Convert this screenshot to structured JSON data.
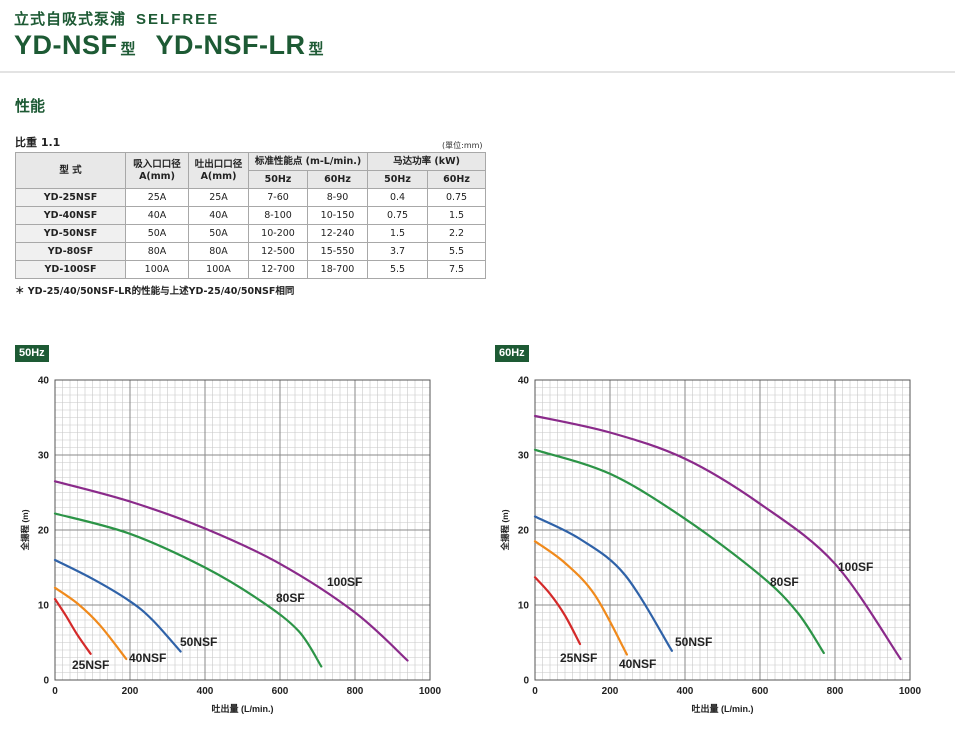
{
  "header": {
    "subtitle_cn": "立式自吸式泵浦",
    "subtitle_en": "SELFREE",
    "model_a": "YD-NSF",
    "model_b": "YD-NSF-LR",
    "type_char": "型"
  },
  "section_title": "性能",
  "specific_gravity": "比重 1.1",
  "unit_note": "(單位:mm)",
  "table": {
    "headers": {
      "type": "型 式",
      "suction_l1": "吸入口口径",
      "suction_l2": "A(mm)",
      "discharge_l1": "吐出口口径",
      "discharge_l2": "A(mm)",
      "performance": "标准性能点 (m-L/min.)",
      "motor": "马达功率 (kW)",
      "hz50": "50Hz",
      "hz60": "60Hz"
    },
    "rows": [
      {
        "model": "YD-25NSF",
        "suction": "25A",
        "discharge": "25A",
        "perf50": "7-60",
        "perf60": "8-90",
        "kw50": "0.4",
        "kw60": "0.75"
      },
      {
        "model": "YD-40NSF",
        "suction": "40A",
        "discharge": "40A",
        "perf50": "8-100",
        "perf60": "10-150",
        "kw50": "0.75",
        "kw60": "1.5"
      },
      {
        "model": "YD-50NSF",
        "suction": "50A",
        "discharge": "50A",
        "perf50": "10-200",
        "perf60": "12-240",
        "kw50": "1.5",
        "kw60": "2.2"
      },
      {
        "model": "YD-80SF",
        "suction": "80A",
        "discharge": "80A",
        "perf50": "12-500",
        "perf60": "15-550",
        "kw50": "3.7",
        "kw60": "5.5"
      },
      {
        "model": "YD-100SF",
        "suction": "100A",
        "discharge": "100A",
        "perf50": "12-700",
        "perf60": "18-700",
        "kw50": "5.5",
        "kw60": "7.5"
      }
    ]
  },
  "footnote": "＊ YD-25/40/50NSF-LR的性能与上述YD-25/40/50NSF相同",
  "colors": {
    "brand_green": "#1d5a34",
    "25NSF": "#d42a2a",
    "40NSF": "#f08a1c",
    "50NSF": "#2f62a8",
    "80SF": "#2c9447",
    "100SF": "#8a2a8a"
  },
  "chart_data": [
    {
      "type": "line",
      "title": "50Hz",
      "xlabel": "吐出量 (L/min.)",
      "ylabel": "全揚程 (m)",
      "xlim": [
        0,
        1000
      ],
      "ylim": [
        0,
        40
      ],
      "xticks": [
        0,
        200,
        400,
        600,
        800,
        1000
      ],
      "yticks": [
        0,
        10,
        20,
        30,
        40
      ],
      "grid": true,
      "series": [
        {
          "name": "25NSF",
          "x": [
            0,
            30,
            60,
            95
          ],
          "y": [
            10.8,
            8.5,
            6.0,
            3.5
          ]
        },
        {
          "name": "40NSF",
          "x": [
            0,
            60,
            120,
            190
          ],
          "y": [
            12.3,
            10.2,
            7.3,
            2.8
          ]
        },
        {
          "name": "50NSF",
          "x": [
            0,
            100,
            200,
            260,
            335
          ],
          "y": [
            16.0,
            13.5,
            10.5,
            8.0,
            3.8
          ]
        },
        {
          "name": "80SF",
          "x": [
            0,
            200,
            400,
            550,
            650,
            710
          ],
          "y": [
            22.2,
            19.5,
            15.0,
            10.5,
            6.5,
            1.8
          ]
        },
        {
          "name": "100SF",
          "x": [
            0,
            200,
            400,
            600,
            800,
            940
          ],
          "y": [
            26.5,
            23.8,
            20.2,
            15.5,
            9.0,
            2.6
          ]
        }
      ]
    },
    {
      "type": "line",
      "title": "60Hz",
      "xlabel": "吐出量 (L/min.)",
      "ylabel": "全揚程 (m)",
      "xlim": [
        0,
        1000
      ],
      "ylim": [
        0,
        40
      ],
      "xticks": [
        0,
        200,
        400,
        600,
        800,
        1000
      ],
      "yticks": [
        0,
        10,
        20,
        30,
        40
      ],
      "grid": true,
      "series": [
        {
          "name": "25NSF",
          "x": [
            0,
            40,
            80,
            120
          ],
          "y": [
            13.7,
            11.5,
            8.6,
            4.8
          ]
        },
        {
          "name": "40NSF",
          "x": [
            0,
            80,
            160,
            245
          ],
          "y": [
            18.5,
            15.6,
            11.3,
            3.4
          ]
        },
        {
          "name": "50NSF",
          "x": [
            0,
            120,
            240,
            365
          ],
          "y": [
            21.8,
            18.8,
            14.0,
            3.9
          ]
        },
        {
          "name": "80SF",
          "x": [
            0,
            200,
            400,
            600,
            700,
            770
          ],
          "y": [
            30.7,
            27.5,
            21.5,
            14.0,
            9.0,
            3.6
          ]
        },
        {
          "name": "100SF",
          "x": [
            0,
            200,
            400,
            600,
            800,
            975
          ],
          "y": [
            35.2,
            33.0,
            29.5,
            23.5,
            15.5,
            2.8
          ]
        }
      ]
    }
  ]
}
